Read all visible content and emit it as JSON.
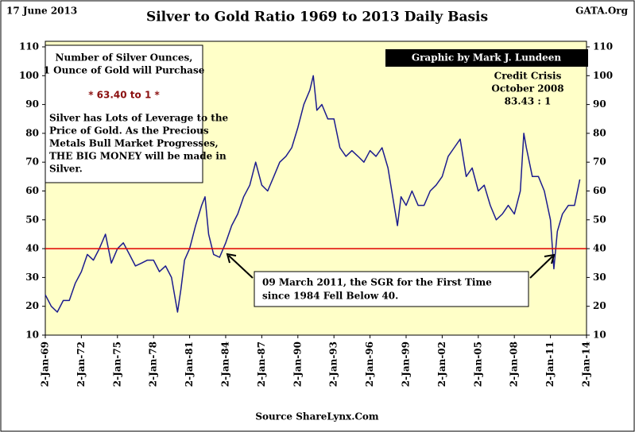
{
  "chart_data": {
    "type": "line",
    "title": "Silver to Gold Ratio 1969 to 2013 Daily Basis",
    "date_label": "17 June 2013",
    "site_label": "GATA.Org",
    "credit": "Graphic by Mark J. Lundeen",
    "source": "Source ShareLynx.Com",
    "info_box": {
      "heading": [
        "Number of Silver Ounces,",
        "1 Ounce of Gold will Purchase"
      ],
      "highlight": "* 63.40 to 1 *",
      "body": [
        "Silver has Lots of Leverage to the",
        "Price of Gold.  As the Precious",
        "Metals Bull Market Progresses,",
        "THE BIG MONEY  will be made in",
        "Silver."
      ]
    },
    "annotations": [
      {
        "lines": [
          "Credit Crisis",
          "October 2008",
          "83.43 : 1"
        ]
      },
      {
        "lines": [
          "09 March 2011, the SGR for the First Time",
          "since 1984 Fell Below 40."
        ]
      }
    ],
    "reference_line": {
      "value": 40,
      "color": "#e00000"
    },
    "ylim": [
      10,
      110
    ],
    "yticks": [
      10,
      20,
      30,
      40,
      50,
      60,
      70,
      80,
      90,
      100,
      110
    ],
    "y2lim": [
      10,
      110
    ],
    "y2ticks": [
      10,
      20,
      30,
      40,
      50,
      60,
      70,
      80,
      90,
      100,
      110
    ],
    "xlim": [
      "1969-01-02",
      "2014-01-02"
    ],
    "xticks": [
      {
        "value": "1969-01-02",
        "label": "2-Jan-69"
      },
      {
        "value": "1972-01-02",
        "label": "2-Jan-72"
      },
      {
        "value": "1975-01-02",
        "label": "2-Jan-75"
      },
      {
        "value": "1978-01-02",
        "label": "2-Jan-78"
      },
      {
        "value": "1981-01-02",
        "label": "2-Jan-81"
      },
      {
        "value": "1984-01-02",
        "label": "2-Jan-84"
      },
      {
        "value": "1987-01-02",
        "label": "2-Jan-87"
      },
      {
        "value": "1990-01-02",
        "label": "2-Jan-90"
      },
      {
        "value": "1993-01-02",
        "label": "2-Jan-93"
      },
      {
        "value": "1996-01-02",
        "label": "2-Jan-96"
      },
      {
        "value": "1999-01-02",
        "label": "2-Jan-99"
      },
      {
        "value": "2002-01-02",
        "label": "2-Jan-02"
      },
      {
        "value": "2005-01-02",
        "label": "2-Jan-05"
      },
      {
        "value": "2008-01-02",
        "label": "2-Jan-08"
      },
      {
        "value": "2011-01-02",
        "label": "2-Jan-11"
      },
      {
        "value": "2014-01-02",
        "label": "2-Jan-14"
      }
    ],
    "series": [
      {
        "color": "#1c1c8e",
        "x": [
          "1969-01-02",
          "1969-07-01",
          "1970-01-02",
          "1970-07-01",
          "1971-01-02",
          "1971-07-01",
          "1972-01-02",
          "1972-07-01",
          "1973-01-02",
          "1973-07-01",
          "1974-01-02",
          "1974-07-01",
          "1975-01-02",
          "1975-07-01",
          "1976-01-02",
          "1976-07-01",
          "1977-01-02",
          "1977-07-01",
          "1978-01-02",
          "1978-07-01",
          "1979-01-02",
          "1979-07-01",
          "1980-01-02",
          "1980-04-15",
          "1980-08-01",
          "1981-01-02",
          "1981-07-01",
          "1982-01-02",
          "1982-04-15",
          "1982-08-01",
          "1983-01-02",
          "1983-07-01",
          "1984-01-02",
          "1984-07-01",
          "1985-01-02",
          "1985-07-01",
          "1986-01-02",
          "1986-07-01",
          "1987-01-02",
          "1987-07-01",
          "1988-01-02",
          "1988-07-01",
          "1989-01-02",
          "1989-07-01",
          "1990-01-02",
          "1990-07-01",
          "1991-01-02",
          "1991-04-15",
          "1991-08-01",
          "1992-01-02",
          "1992-07-01",
          "1993-01-02",
          "1993-07-01",
          "1994-01-02",
          "1994-07-01",
          "1995-01-02",
          "1995-07-01",
          "1996-01-02",
          "1996-07-01",
          "1997-01-02",
          "1997-07-01",
          "1998-01-02",
          "1998-04-15",
          "1998-08-01",
          "1999-01-02",
          "1999-07-01",
          "2000-01-02",
          "2000-07-01",
          "2001-01-02",
          "2001-07-01",
          "2002-01-02",
          "2002-07-01",
          "2003-01-02",
          "2003-07-01",
          "2004-01-02",
          "2004-07-01",
          "2005-01-02",
          "2005-07-01",
          "2006-01-02",
          "2006-07-01",
          "2007-01-02",
          "2007-07-01",
          "2008-01-02",
          "2008-07-01",
          "2008-10-15",
          "2009-01-02",
          "2009-07-01",
          "2010-01-02",
          "2010-07-01",
          "2011-01-02",
          "2011-04-15",
          "2011-08-01",
          "2012-01-02",
          "2012-07-01",
          "2013-01-02",
          "2013-06-14"
        ],
        "values": [
          24,
          20,
          18,
          22,
          22,
          28,
          32,
          38,
          36,
          40,
          45,
          35,
          40,
          42,
          38,
          34,
          35,
          36,
          36,
          32,
          34,
          30,
          18,
          26,
          36,
          40,
          48,
          55,
          58,
          45,
          38,
          37,
          42,
          48,
          52,
          58,
          62,
          70,
          62,
          60,
          65,
          70,
          72,
          75,
          82,
          90,
          95,
          100,
          88,
          90,
          85,
          85,
          75,
          72,
          74,
          72,
          70,
          74,
          72,
          75,
          68,
          55,
          48,
          58,
          55,
          60,
          55,
          55,
          60,
          62,
          65,
          72,
          75,
          78,
          65,
          68,
          60,
          62,
          55,
          50,
          52,
          55,
          52,
          60,
          80,
          75,
          65,
          65,
          60,
          50,
          33,
          46,
          52,
          55,
          55,
          64
        ]
      }
    ]
  }
}
